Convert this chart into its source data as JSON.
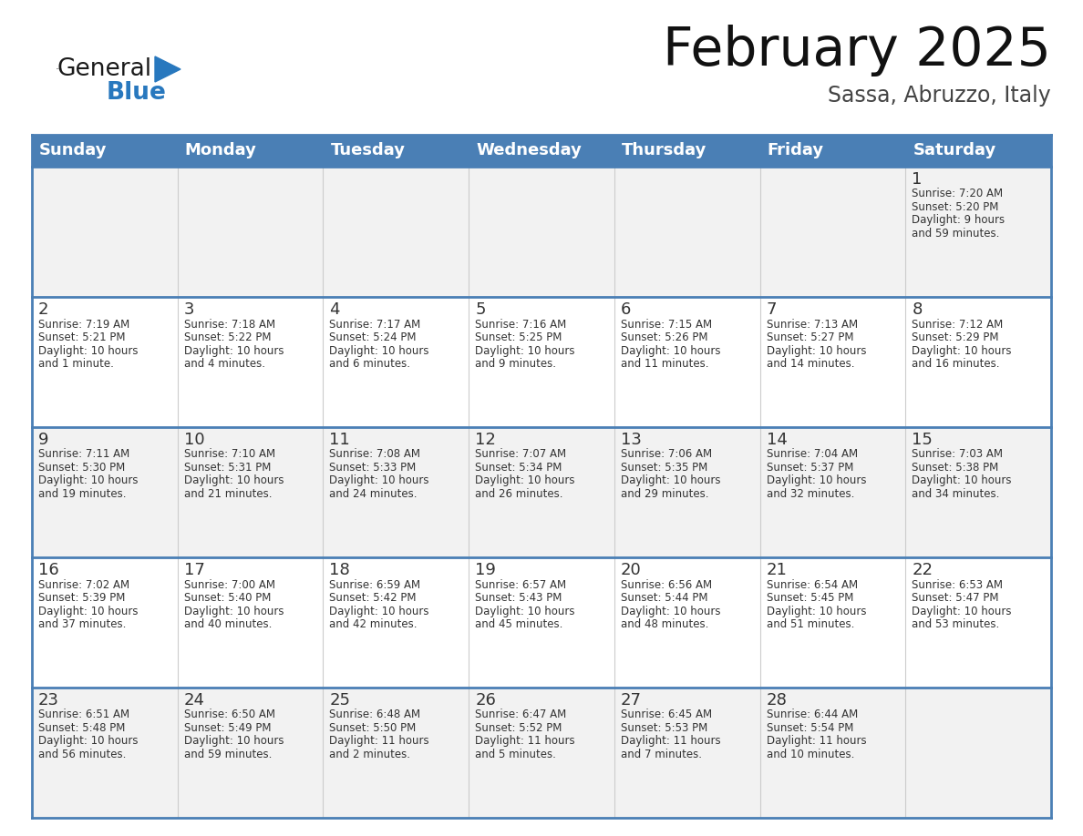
{
  "title": "February 2025",
  "subtitle": "Sassa, Abruzzo, Italy",
  "header_bg": "#4a7fb5",
  "header_text_color": "#ffffff",
  "row_bg_1": "#f2f2f2",
  "row_bg_2": "#ffffff",
  "border_color": "#4a7fb5",
  "cell_border_color": "#bbbbbb",
  "text_color": "#333333",
  "days_of_week": [
    "Sunday",
    "Monday",
    "Tuesday",
    "Wednesday",
    "Thursday",
    "Friday",
    "Saturday"
  ],
  "weeks": [
    [
      {
        "day": "",
        "info": ""
      },
      {
        "day": "",
        "info": ""
      },
      {
        "day": "",
        "info": ""
      },
      {
        "day": "",
        "info": ""
      },
      {
        "day": "",
        "info": ""
      },
      {
        "day": "",
        "info": ""
      },
      {
        "day": "1",
        "info": "Sunrise: 7:20 AM\nSunset: 5:20 PM\nDaylight: 9 hours\nand 59 minutes."
      }
    ],
    [
      {
        "day": "2",
        "info": "Sunrise: 7:19 AM\nSunset: 5:21 PM\nDaylight: 10 hours\nand 1 minute."
      },
      {
        "day": "3",
        "info": "Sunrise: 7:18 AM\nSunset: 5:22 PM\nDaylight: 10 hours\nand 4 minutes."
      },
      {
        "day": "4",
        "info": "Sunrise: 7:17 AM\nSunset: 5:24 PM\nDaylight: 10 hours\nand 6 minutes."
      },
      {
        "day": "5",
        "info": "Sunrise: 7:16 AM\nSunset: 5:25 PM\nDaylight: 10 hours\nand 9 minutes."
      },
      {
        "day": "6",
        "info": "Sunrise: 7:15 AM\nSunset: 5:26 PM\nDaylight: 10 hours\nand 11 minutes."
      },
      {
        "day": "7",
        "info": "Sunrise: 7:13 AM\nSunset: 5:27 PM\nDaylight: 10 hours\nand 14 minutes."
      },
      {
        "day": "8",
        "info": "Sunrise: 7:12 AM\nSunset: 5:29 PM\nDaylight: 10 hours\nand 16 minutes."
      }
    ],
    [
      {
        "day": "9",
        "info": "Sunrise: 7:11 AM\nSunset: 5:30 PM\nDaylight: 10 hours\nand 19 minutes."
      },
      {
        "day": "10",
        "info": "Sunrise: 7:10 AM\nSunset: 5:31 PM\nDaylight: 10 hours\nand 21 minutes."
      },
      {
        "day": "11",
        "info": "Sunrise: 7:08 AM\nSunset: 5:33 PM\nDaylight: 10 hours\nand 24 minutes."
      },
      {
        "day": "12",
        "info": "Sunrise: 7:07 AM\nSunset: 5:34 PM\nDaylight: 10 hours\nand 26 minutes."
      },
      {
        "day": "13",
        "info": "Sunrise: 7:06 AM\nSunset: 5:35 PM\nDaylight: 10 hours\nand 29 minutes."
      },
      {
        "day": "14",
        "info": "Sunrise: 7:04 AM\nSunset: 5:37 PM\nDaylight: 10 hours\nand 32 minutes."
      },
      {
        "day": "15",
        "info": "Sunrise: 7:03 AM\nSunset: 5:38 PM\nDaylight: 10 hours\nand 34 minutes."
      }
    ],
    [
      {
        "day": "16",
        "info": "Sunrise: 7:02 AM\nSunset: 5:39 PM\nDaylight: 10 hours\nand 37 minutes."
      },
      {
        "day": "17",
        "info": "Sunrise: 7:00 AM\nSunset: 5:40 PM\nDaylight: 10 hours\nand 40 minutes."
      },
      {
        "day": "18",
        "info": "Sunrise: 6:59 AM\nSunset: 5:42 PM\nDaylight: 10 hours\nand 42 minutes."
      },
      {
        "day": "19",
        "info": "Sunrise: 6:57 AM\nSunset: 5:43 PM\nDaylight: 10 hours\nand 45 minutes."
      },
      {
        "day": "20",
        "info": "Sunrise: 6:56 AM\nSunset: 5:44 PM\nDaylight: 10 hours\nand 48 minutes."
      },
      {
        "day": "21",
        "info": "Sunrise: 6:54 AM\nSunset: 5:45 PM\nDaylight: 10 hours\nand 51 minutes."
      },
      {
        "day": "22",
        "info": "Sunrise: 6:53 AM\nSunset: 5:47 PM\nDaylight: 10 hours\nand 53 minutes."
      }
    ],
    [
      {
        "day": "23",
        "info": "Sunrise: 6:51 AM\nSunset: 5:48 PM\nDaylight: 10 hours\nand 56 minutes."
      },
      {
        "day": "24",
        "info": "Sunrise: 6:50 AM\nSunset: 5:49 PM\nDaylight: 10 hours\nand 59 minutes."
      },
      {
        "day": "25",
        "info": "Sunrise: 6:48 AM\nSunset: 5:50 PM\nDaylight: 11 hours\nand 2 minutes."
      },
      {
        "day": "26",
        "info": "Sunrise: 6:47 AM\nSunset: 5:52 PM\nDaylight: 11 hours\nand 5 minutes."
      },
      {
        "day": "27",
        "info": "Sunrise: 6:45 AM\nSunset: 5:53 PM\nDaylight: 11 hours\nand 7 minutes."
      },
      {
        "day": "28",
        "info": "Sunrise: 6:44 AM\nSunset: 5:54 PM\nDaylight: 11 hours\nand 10 minutes."
      },
      {
        "day": "",
        "info": ""
      }
    ]
  ],
  "logo_color_general": "#1a1a1a",
  "logo_color_blue": "#2878be",
  "logo_triangle_color": "#2878be"
}
